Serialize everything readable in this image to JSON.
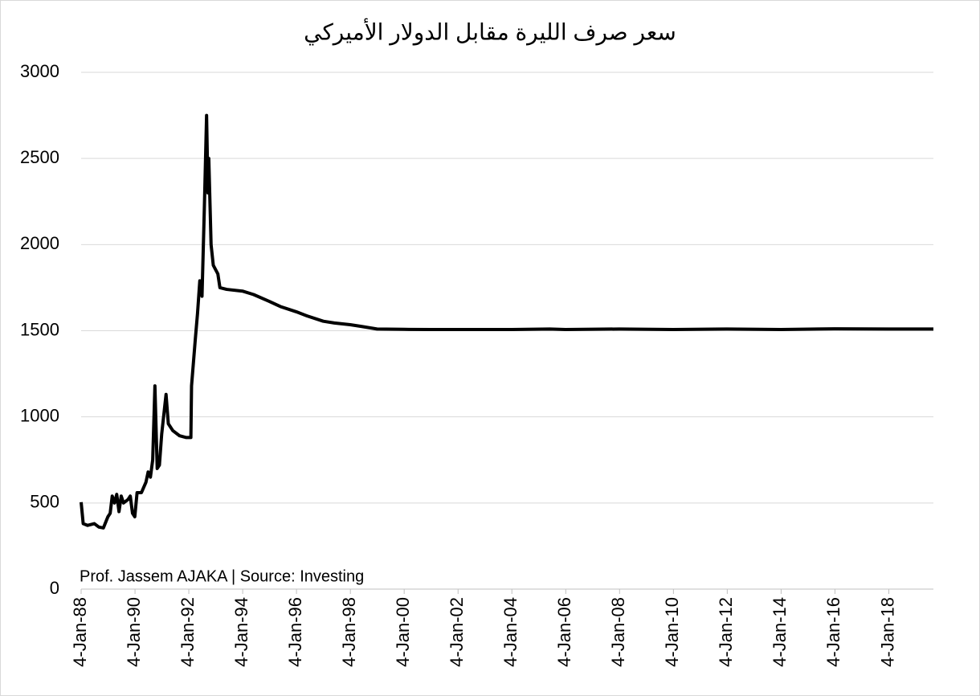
{
  "chart_data": {
    "type": "line",
    "title": "سعر صرف الليرة مقابل الدولار الأميركي",
    "annotation": "Prof. Jassem AJAKA | Source: Investing",
    "color": "#000000",
    "x": [
      "1988-01-04",
      "1988-02-01",
      "1988-04-01",
      "1988-07-01",
      "1988-09-01",
      "1988-11-01",
      "1989-01-01",
      "1989-02-01",
      "1989-03-01",
      "1989-04-01",
      "1989-05-01",
      "1989-06-01",
      "1989-07-01",
      "1989-08-01",
      "1989-10-01",
      "1989-11-01",
      "1989-12-01",
      "1990-01-01",
      "1990-02-01",
      "1990-04-01",
      "1990-06-01",
      "1990-07-01",
      "1990-08-01",
      "1990-09-01",
      "1990-10-01",
      "1990-11-01",
      "1990-12-01",
      "1991-01-01",
      "1991-03-01",
      "1991-04-01",
      "1991-06-01",
      "1991-09-01",
      "1991-12-01",
      "1992-02-01",
      "1992-02-10",
      "1992-04-01",
      "1992-05-01",
      "1992-06-01",
      "1992-07-01",
      "1992-08-01",
      "1992-09-01",
      "1992-09-20",
      "1992-10-01",
      "1992-11-01",
      "1992-12-01",
      "1993-02-01",
      "1993-03-01",
      "1993-06-01",
      "1994-01-01",
      "1994-06-01",
      "1995-01-01",
      "1995-06-01",
      "1996-01-01",
      "1996-06-01",
      "1997-01-01",
      "1997-06-01",
      "1998-01-01",
      "1998-06-01",
      "1999-01-01",
      "2000-01-01",
      "2001-01-01",
      "2002-01-01",
      "2004-01-01",
      "2005-06-01",
      "2006-01-01",
      "2008-01-01",
      "2010-01-01",
      "2012-01-01",
      "2014-01-01",
      "2016-01-01",
      "2018-01-01",
      "2019-09-01"
    ],
    "values": [
      505,
      380,
      370,
      380,
      360,
      355,
      420,
      440,
      540,
      500,
      550,
      450,
      540,
      500,
      520,
      540,
      440,
      420,
      560,
      560,
      620,
      680,
      650,
      750,
      1180,
      700,
      720,
      900,
      1130,
      960,
      920,
      890,
      880,
      880,
      1180,
      1450,
      1600,
      1790,
      1700,
      2200,
      2750,
      2300,
      2500,
      2000,
      1880,
      1830,
      1750,
      1740,
      1730,
      1710,
      1670,
      1640,
      1610,
      1585,
      1555,
      1545,
      1535,
      1525,
      1510,
      1508,
      1507,
      1507,
      1507,
      1510,
      1507,
      1510,
      1507,
      1510,
      1507,
      1511,
      1510,
      1510
    ],
    "xlim": [
      "1988-01-04",
      "2019-09-01"
    ],
    "xticks": [
      {
        "value": "1988-01-04",
        "label": "4-Jan-88"
      },
      {
        "value": "1990-01-04",
        "label": "4-Jan-90"
      },
      {
        "value": "1992-01-04",
        "label": "4-Jan-92"
      },
      {
        "value": "1994-01-04",
        "label": "4-Jan-94"
      },
      {
        "value": "1996-01-04",
        "label": "4-Jan-96"
      },
      {
        "value": "1998-01-04",
        "label": "4-Jan-98"
      },
      {
        "value": "2000-01-04",
        "label": "4-Jan-00"
      },
      {
        "value": "2002-01-04",
        "label": "4-Jan-02"
      },
      {
        "value": "2004-01-04",
        "label": "4-Jan-04"
      },
      {
        "value": "2006-01-04",
        "label": "4-Jan-06"
      },
      {
        "value": "2008-01-04",
        "label": "4-Jan-08"
      },
      {
        "value": "2010-01-04",
        "label": "4-Jan-10"
      },
      {
        "value": "2012-01-04",
        "label": "4-Jan-12"
      },
      {
        "value": "2014-01-04",
        "label": "4-Jan-14"
      },
      {
        "value": "2016-01-04",
        "label": "4-Jan-16"
      },
      {
        "value": "2018-01-04",
        "label": "4-Jan-18"
      }
    ],
    "ylim": [
      0,
      3000
    ],
    "yticks": [
      0,
      500,
      1000,
      1500,
      2000,
      2500,
      3000
    ],
    "grid": true
  }
}
